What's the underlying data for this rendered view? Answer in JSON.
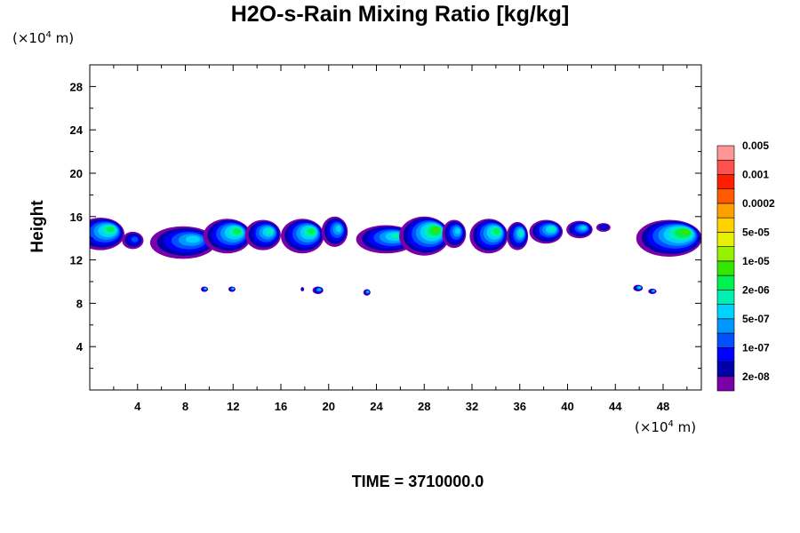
{
  "chart_data": {
    "type": "heatmap",
    "title": "H2O-s-Rain Mixing Ratio [kg/kg]",
    "ylabel": "Height",
    "xlabel": "",
    "x_unit_prefix": "(×10",
    "x_unit_exp": "4",
    "x_unit_suffix": " m)",
    "y_unit_prefix": "(×10",
    "y_unit_exp": "4",
    "y_unit_suffix": " m)",
    "xlim": [
      0,
      51.2
    ],
    "ylim": [
      0,
      30
    ],
    "x_ticks": [
      4,
      8,
      12,
      16,
      20,
      24,
      28,
      32,
      36,
      40,
      44,
      48
    ],
    "x_tick_labels": [
      "4",
      "8",
      "12",
      "16",
      "20",
      "24",
      "28",
      "32",
      "36",
      "40",
      "44",
      "48"
    ],
    "y_ticks": [
      4,
      8,
      12,
      16,
      20,
      24,
      28
    ],
    "y_tick_labels": [
      "4",
      "8",
      "12",
      "16",
      "20",
      "24",
      "28"
    ],
    "colorbar": {
      "colors": [
        "#7a00a8",
        "#0000aa",
        "#0000ff",
        "#0050ff",
        "#0096ff",
        "#00d2ff",
        "#00f0b4",
        "#00f050",
        "#32e600",
        "#96f000",
        "#e6f000",
        "#ffd200",
        "#ffa000",
        "#ff5a00",
        "#ff1e00",
        "#ff5050",
        "#ff9696"
      ],
      "labels": [
        "2e-08",
        "1e-07",
        "5e-07",
        "2e-06",
        "1e-05",
        "5e-05",
        "0.0002",
        "0.001",
        "0.005"
      ]
    },
    "footer": "TIME = 3710000.0",
    "clouds": [
      {
        "x": 0.9,
        "y": 14.4,
        "w": 4.0,
        "h": 3.0,
        "level": 7
      },
      {
        "x": 3.6,
        "y": 13.8,
        "w": 1.8,
        "h": 1.6,
        "level": 3
      },
      {
        "x": 7.8,
        "y": 13.6,
        "w": 5.5,
        "h": 3.0,
        "level": 5
      },
      {
        "x": 11.5,
        "y": 14.2,
        "w": 4.0,
        "h": 3.2,
        "level": 7
      },
      {
        "x": 14.5,
        "y": 14.3,
        "w": 3.0,
        "h": 2.8,
        "level": 6
      },
      {
        "x": 17.8,
        "y": 14.2,
        "w": 3.6,
        "h": 3.2,
        "level": 7
      },
      {
        "x": 20.5,
        "y": 14.6,
        "w": 2.2,
        "h": 2.8,
        "level": 5
      },
      {
        "x": 24.8,
        "y": 13.9,
        "w": 5.0,
        "h": 2.6,
        "level": 6
      },
      {
        "x": 28.0,
        "y": 14.2,
        "w": 4.2,
        "h": 3.6,
        "level": 8
      },
      {
        "x": 30.5,
        "y": 14.4,
        "w": 2.0,
        "h": 2.6,
        "level": 5
      },
      {
        "x": 33.4,
        "y": 14.2,
        "w": 3.2,
        "h": 3.2,
        "level": 7
      },
      {
        "x": 35.8,
        "y": 14.2,
        "w": 1.8,
        "h": 2.6,
        "level": 6
      },
      {
        "x": 38.2,
        "y": 14.6,
        "w": 2.8,
        "h": 2.2,
        "level": 6
      },
      {
        "x": 41.0,
        "y": 14.8,
        "w": 2.2,
        "h": 1.6,
        "level": 5
      },
      {
        "x": 43.0,
        "y": 15.0,
        "w": 1.2,
        "h": 0.8,
        "level": 2
      },
      {
        "x": 48.5,
        "y": 14.0,
        "w": 5.5,
        "h": 3.4,
        "level": 8
      },
      {
        "x": 9.6,
        "y": 9.3,
        "w": 0.6,
        "h": 0.5,
        "level": 5
      },
      {
        "x": 11.9,
        "y": 9.3,
        "w": 0.6,
        "h": 0.5,
        "level": 5
      },
      {
        "x": 17.8,
        "y": 9.3,
        "w": 0.3,
        "h": 0.4,
        "level": 2
      },
      {
        "x": 19.1,
        "y": 9.2,
        "w": 0.9,
        "h": 0.7,
        "level": 5
      },
      {
        "x": 23.2,
        "y": 9.0,
        "w": 0.6,
        "h": 0.6,
        "level": 5
      },
      {
        "x": 45.9,
        "y": 9.4,
        "w": 0.8,
        "h": 0.6,
        "level": 6
      },
      {
        "x": 47.1,
        "y": 9.1,
        "w": 0.7,
        "h": 0.5,
        "level": 5
      }
    ]
  }
}
